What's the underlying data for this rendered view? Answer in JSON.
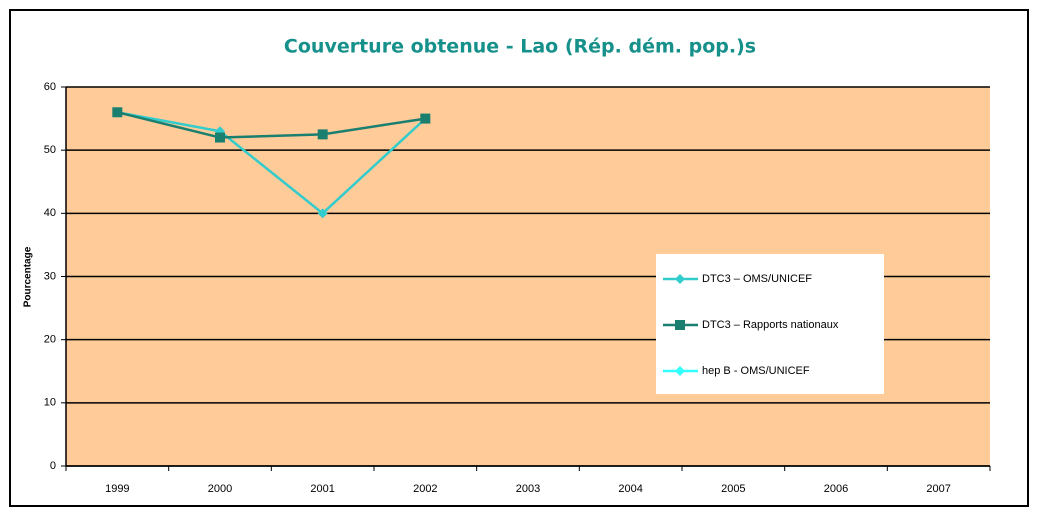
{
  "chart_data": {
    "type": "line",
    "title": "Couverture obtenue - Lao (Rép. dém. pop.)s",
    "y_label": "Pourcentage",
    "categories": [
      "1999",
      "2000",
      "2001",
      "2002",
      "2003",
      "2004",
      "2005",
      "2006",
      "2007"
    ],
    "series": [
      {
        "name": "DTC3 – OMS/UNICEF",
        "color": "#33CCCC",
        "marker": "diamond",
        "values": [
          56,
          53,
          40,
          55,
          null,
          null,
          null,
          null,
          null
        ]
      },
      {
        "name": "DTC3 – Rapports nationaux",
        "color": "#1B7F70",
        "marker": "square",
        "values": [
          56,
          52,
          52.5,
          55,
          null,
          null,
          null,
          null,
          null
        ]
      },
      {
        "name": "hep B - OMS/UNICEF",
        "color": "#33FFFF",
        "marker": "diamond",
        "values": [
          null,
          null,
          null,
          null,
          null,
          null,
          null,
          null,
          null
        ]
      }
    ],
    "ylim": [
      0,
      60
    ],
    "yticks": [
      0,
      10,
      20,
      30,
      40,
      50,
      60
    ],
    "grid": true,
    "plot_background": "#FFCC99"
  }
}
